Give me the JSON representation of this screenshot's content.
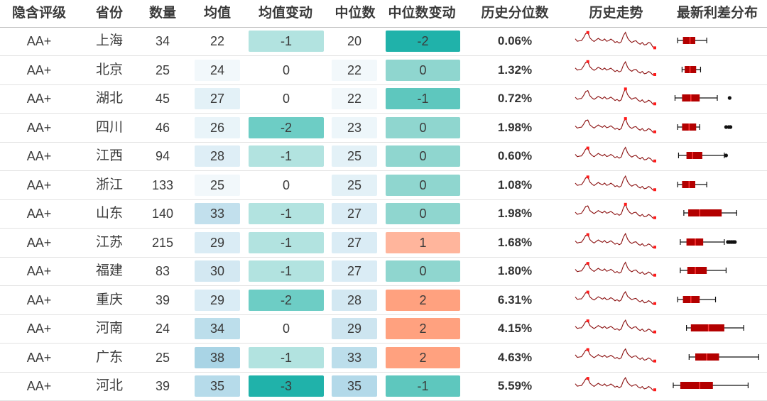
{
  "headers": [
    "隐含评级",
    "省份",
    "数量",
    "均值",
    "均值变动",
    "中位数",
    "中位数变动",
    "历史分位数",
    "历史走势",
    "最新利差分布"
  ],
  "rows": [
    {
      "rating": "AA+",
      "province": "上海",
      "count": "34",
      "mean": "22",
      "mean_change": "-1",
      "median": "20",
      "median_change": "-2",
      "percentile": "0.06%",
      "colors": {
        "mean": "#ffffff",
        "mean_change": "#b2e3e0",
        "median": "#ffffff",
        "median_change": "#20b2aa"
      },
      "spark": [
        0.55,
        0.5,
        0.62,
        0.95,
        0.48,
        0.55,
        0.5,
        0.6,
        0.45,
        0.52,
        0.4,
        0.45,
        0.9,
        0.5,
        0.42,
        0.38,
        0.35,
        0.3,
        0.32,
        0.12
      ],
      "box": {
        "wl": 0.05,
        "q1": 0.11,
        "med": 0.19,
        "q3": 0.25,
        "wh": 0.38,
        "out": []
      }
    },
    {
      "rating": "AA+",
      "province": "北京",
      "count": "25",
      "mean": "24",
      "mean_change": "0",
      "median": "22",
      "median_change": "0",
      "percentile": "1.32%",
      "colors": {
        "mean": "#f2f8fb",
        "mean_change": "#ffffff",
        "median": "#f2f8fb",
        "median_change": "#8fd6cf"
      },
      "spark": [
        0.55,
        0.52,
        0.65,
        0.95,
        0.5,
        0.55,
        0.52,
        0.6,
        0.48,
        0.5,
        0.42,
        0.45,
        0.88,
        0.5,
        0.45,
        0.4,
        0.36,
        0.32,
        0.3,
        0.25
      ],
      "box": {
        "wl": 0.1,
        "q1": 0.13,
        "med": 0.19,
        "q3": 0.26,
        "wh": 0.31,
        "out": []
      }
    },
    {
      "rating": "AA+",
      "province": "湖北",
      "count": "45",
      "mean": "27",
      "mean_change": "0",
      "median": "22",
      "median_change": "-1",
      "percentile": "0.72%",
      "colors": {
        "mean": "#e3f1f7",
        "mean_change": "#ffffff",
        "median": "#f2f8fb",
        "median_change": "#5ec7be"
      },
      "spark": [
        0.5,
        0.48,
        0.6,
        0.92,
        0.46,
        0.52,
        0.48,
        0.58,
        0.44,
        0.48,
        0.38,
        0.42,
        0.95,
        0.55,
        0.45,
        0.4,
        0.36,
        0.3,
        0.28,
        0.2
      ],
      "box": {
        "wl": 0.02,
        "q1": 0.1,
        "med": 0.2,
        "q3": 0.3,
        "wh": 0.5,
        "out": [
          0.64
        ]
      }
    },
    {
      "rating": "AA+",
      "province": "四川",
      "count": "46",
      "mean": "26",
      "mean_change": "-2",
      "median": "23",
      "median_change": "0",
      "percentile": "1.98%",
      "colors": {
        "mean": "#e9f4f9",
        "mean_change": "#6dcdc5",
        "median": "#edf6fa",
        "median_change": "#8fd6cf"
      },
      "spark": [
        0.52,
        0.5,
        0.62,
        0.9,
        0.48,
        0.55,
        0.5,
        0.6,
        0.46,
        0.5,
        0.4,
        0.44,
        0.92,
        0.52,
        0.46,
        0.42,
        0.38,
        0.34,
        0.32,
        0.26
      ],
      "box": {
        "wl": 0.05,
        "q1": 0.1,
        "med": 0.18,
        "q3": 0.26,
        "wh": 0.3,
        "out": [
          0.6,
          0.63,
          0.65
        ]
      }
    },
    {
      "rating": "AA+",
      "province": "江西",
      "count": "94",
      "mean": "28",
      "mean_change": "-1",
      "median": "25",
      "median_change": "0",
      "percentile": "0.60%",
      "colors": {
        "mean": "#deeef6",
        "mean_change": "#b2e3e0",
        "median": "#e3f1f7",
        "median_change": "#8fd6cf"
      },
      "spark": [
        0.52,
        0.48,
        0.6,
        0.92,
        0.46,
        0.54,
        0.5,
        0.58,
        0.44,
        0.5,
        0.4,
        0.44,
        0.9,
        0.52,
        0.44,
        0.4,
        0.36,
        0.3,
        0.28,
        0.22
      ],
      "box": {
        "wl": 0.06,
        "q1": 0.15,
        "med": 0.22,
        "q3": 0.33,
        "wh": 0.58,
        "out": [
          0.6
        ]
      }
    },
    {
      "rating": "AA+",
      "province": "浙江",
      "count": "133",
      "mean": "25",
      "mean_change": "0",
      "median": "25",
      "median_change": "0",
      "percentile": "1.08%",
      "colors": {
        "mean": "#f2f8fb",
        "mean_change": "#ffffff",
        "median": "#e3f1f7",
        "median_change": "#8fd6cf"
      },
      "spark": [
        0.54,
        0.5,
        0.62,
        0.93,
        0.48,
        0.55,
        0.5,
        0.6,
        0.45,
        0.52,
        0.4,
        0.45,
        0.92,
        0.52,
        0.44,
        0.4,
        0.36,
        0.32,
        0.3,
        0.24
      ],
      "box": {
        "wl": 0.05,
        "q1": 0.1,
        "med": 0.18,
        "q3": 0.25,
        "wh": 0.38,
        "out": []
      }
    },
    {
      "rating": "AA+",
      "province": "山东",
      "count": "140",
      "mean": "33",
      "mean_change": "-1",
      "median": "27",
      "median_change": "0",
      "percentile": "1.98%",
      "colors": {
        "mean": "#c2e0ed",
        "mean_change": "#b2e3e0",
        "median": "#daecf5",
        "median_change": "#8fd6cf"
      },
      "spark": [
        0.5,
        0.48,
        0.62,
        0.9,
        0.5,
        0.56,
        0.52,
        0.62,
        0.48,
        0.52,
        0.42,
        0.46,
        0.93,
        0.55,
        0.48,
        0.42,
        0.38,
        0.34,
        0.32,
        0.26
      ],
      "box": {
        "wl": 0.12,
        "q1": 0.17,
        "med": 0.3,
        "q3": 0.55,
        "wh": 0.72,
        "out": []
      }
    },
    {
      "rating": "AA+",
      "province": "江苏",
      "count": "215",
      "mean": "29",
      "mean_change": "-1",
      "median": "27",
      "median_change": "1",
      "percentile": "1.68%",
      "colors": {
        "mean": "#daecf5",
        "mean_change": "#b2e3e0",
        "median": "#daecf5",
        "median_change": "#ffb59c"
      },
      "spark": [
        0.52,
        0.5,
        0.62,
        0.92,
        0.48,
        0.55,
        0.5,
        0.6,
        0.46,
        0.5,
        0.4,
        0.44,
        0.92,
        0.52,
        0.45,
        0.41,
        0.37,
        0.33,
        0.3,
        0.24
      ],
      "box": {
        "wl": 0.08,
        "q1": 0.15,
        "med": 0.25,
        "q3": 0.34,
        "wh": 0.58,
        "out": [
          0.62,
          0.64,
          0.66,
          0.68,
          0.7
        ]
      }
    },
    {
      "rating": "AA+",
      "province": "福建",
      "count": "83",
      "mean": "30",
      "mean_change": "-1",
      "median": "27",
      "median_change": "0",
      "percentile": "1.80%",
      "colors": {
        "mean": "#d3e8f2",
        "mean_change": "#b2e3e0",
        "median": "#daecf5",
        "median_change": "#8fd6cf"
      },
      "spark": [
        0.52,
        0.48,
        0.6,
        0.9,
        0.48,
        0.55,
        0.5,
        0.6,
        0.45,
        0.5,
        0.4,
        0.44,
        0.9,
        0.52,
        0.46,
        0.42,
        0.38,
        0.34,
        0.32,
        0.26
      ],
      "box": {
        "wl": 0.08,
        "q1": 0.16,
        "med": 0.25,
        "q3": 0.38,
        "wh": 0.6,
        "out": []
      }
    },
    {
      "rating": "AA+",
      "province": "重庆",
      "count": "39",
      "mean": "29",
      "mean_change": "-2",
      "median": "28",
      "median_change": "2",
      "percentile": "6.31%",
      "colors": {
        "mean": "#daecf5",
        "mean_change": "#6dcdc5",
        "median": "#d3e8f2",
        "median_change": "#ffa17f"
      },
      "spark": [
        0.6,
        0.55,
        0.65,
        0.92,
        0.5,
        0.58,
        0.55,
        0.62,
        0.48,
        0.55,
        0.45,
        0.5,
        0.88,
        0.6,
        0.5,
        0.46,
        0.42,
        0.36,
        0.34,
        0.3
      ],
      "box": {
        "wl": 0.05,
        "q1": 0.11,
        "med": 0.2,
        "q3": 0.3,
        "wh": 0.48,
        "out": []
      }
    },
    {
      "rating": "AA+",
      "province": "河南",
      "count": "24",
      "mean": "34",
      "mean_change": "0",
      "median": "29",
      "median_change": "2",
      "percentile": "4.15%",
      "colors": {
        "mean": "#bcdeeb",
        "mean_change": "#ffffff",
        "median": "#cde5f0",
        "median_change": "#ffa17f"
      },
      "spark": [
        0.55,
        0.52,
        0.62,
        0.9,
        0.5,
        0.56,
        0.52,
        0.6,
        0.48,
        0.52,
        0.42,
        0.46,
        0.88,
        0.56,
        0.5,
        0.45,
        0.4,
        0.36,
        0.34,
        0.3
      ],
      "box": {
        "wl": 0.15,
        "q1": 0.2,
        "med": 0.4,
        "q3": 0.58,
        "wh": 0.8,
        "out": []
      }
    },
    {
      "rating": "AA+",
      "province": "广东",
      "count": "25",
      "mean": "38",
      "mean_change": "-1",
      "median": "33",
      "median_change": "2",
      "percentile": "4.63%",
      "colors": {
        "mean": "#a9d4e5",
        "mean_change": "#b2e3e0",
        "median": "#bcdeeb",
        "median_change": "#ffa17f"
      },
      "spark": [
        0.58,
        0.52,
        0.65,
        0.92,
        0.5,
        0.56,
        0.52,
        0.62,
        0.48,
        0.54,
        0.44,
        0.48,
        0.9,
        0.58,
        0.5,
        0.46,
        0.42,
        0.38,
        0.35,
        0.3
      ],
      "box": {
        "wl": 0.18,
        "q1": 0.25,
        "med": 0.38,
        "q3": 0.52,
        "wh": 0.97,
        "out": []
      }
    },
    {
      "rating": "AA+",
      "province": "河北",
      "count": "39",
      "mean": "35",
      "mean_change": "-3",
      "median": "35",
      "median_change": "-1",
      "percentile": "5.59%",
      "colors": {
        "mean": "#b6dbea",
        "mean_change": "#20b2aa",
        "median": "#b3d9e9",
        "median_change": "#5ec7be"
      },
      "spark": [
        0.55,
        0.5,
        0.62,
        0.9,
        0.48,
        0.55,
        0.5,
        0.6,
        0.46,
        0.52,
        0.42,
        0.46,
        0.88,
        0.56,
        0.48,
        0.44,
        0.4,
        0.36,
        0.34,
        0.28
      ],
      "box": {
        "wl": 0.0,
        "q1": 0.08,
        "med": 0.3,
        "q3": 0.45,
        "wh": 0.85,
        "out": []
      }
    }
  ]
}
